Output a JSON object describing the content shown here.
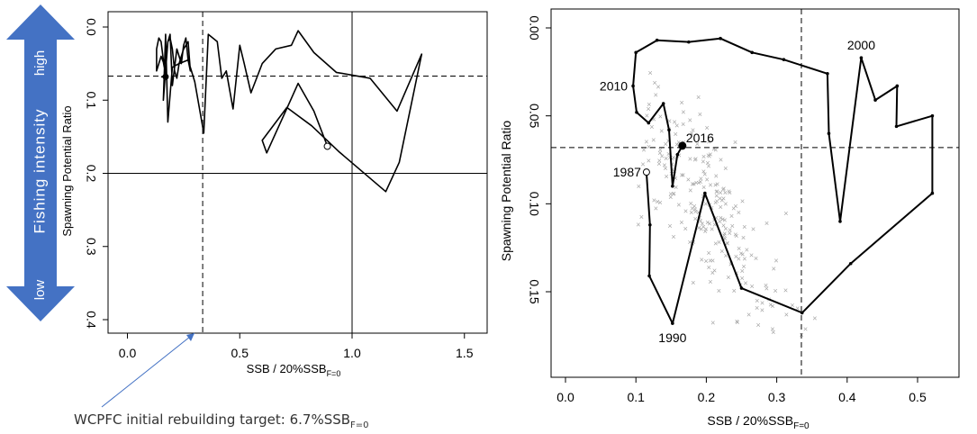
{
  "colors": {
    "arrow_fill": "#4472c4",
    "arrow_text": "#ffffff",
    "note_line": "#4472c4",
    "scatter": "#a6a6a6",
    "trajectory": "#000000"
  },
  "side_arrow": {
    "label": "Fishing intensity",
    "high": "high",
    "low": "low"
  },
  "annotation": {
    "text": "WCPFC initial rebuilding target: 6.7%SSB",
    "subscript": "F=0"
  },
  "chart_data": [
    {
      "type": "line",
      "xlabel": "SSB / 20%SSB",
      "xlabel_sub": "F=0",
      "ylabel": "Spawning Potential Ratio",
      "xlim": [
        -0.1,
        1.6
      ],
      "ylim": [
        0.0,
        0.4
      ],
      "y_reversed": true,
      "xticks": [
        "0.0",
        "0.5",
        "1.0",
        "1.5"
      ],
      "yticks": [
        "0.0",
        "0.1",
        "0.2",
        "0.3",
        "0.4"
      ],
      "reference_lines": [
        {
          "axis": "y",
          "value": 0.067,
          "style": "dashed"
        },
        {
          "axis": "x",
          "value": 0.335,
          "style": "dashed"
        },
        {
          "axis": "x",
          "value": 1.0,
          "style": "solid"
        },
        {
          "axis": "y",
          "value": 0.2,
          "style": "solid"
        }
      ],
      "series": [
        {
          "x": [
            0.89,
            0.83,
            0.76,
            0.7,
            0.62,
            0.6,
            0.71,
            0.82,
            0.94,
            1.15,
            1.21,
            1.31,
            1.2,
            1.08,
            0.93,
            0.83,
            0.76,
            0.73,
            0.66,
            0.6,
            0.55,
            0.52,
            0.5,
            0.47,
            0.44,
            0.42,
            0.4,
            0.36,
            0.34,
            0.3,
            0.27,
            0.23,
            0.2,
            0.18,
            0.17,
            0.16,
            0.18,
            0.19,
            0.2,
            0.22,
            0.24,
            0.25,
            0.26,
            0.27,
            0.28,
            0.27,
            0.25,
            0.23,
            0.22,
            0.21,
            0.2,
            0.19,
            0.18,
            0.17,
            0.16,
            0.15,
            0.14,
            0.13,
            0.13,
            0.14,
            0.15,
            0.16,
            0.17,
            0.16,
            0.15
          ],
          "y": [
            0.163,
            0.115,
            0.077,
            0.118,
            0.172,
            0.155,
            0.11,
            0.135,
            0.17,
            0.225,
            0.185,
            0.037,
            0.115,
            0.07,
            0.062,
            0.035,
            0.005,
            0.025,
            0.03,
            0.05,
            0.09,
            0.05,
            0.025,
            0.112,
            0.06,
            0.07,
            0.02,
            0.01,
            0.145,
            0.075,
            0.045,
            0.05,
            0.055,
            0.13,
            0.01,
            0.1,
            0.02,
            0.01,
            0.08,
            0.03,
            0.05,
            0.025,
            0.015,
            0.045,
            0.06,
            0.02,
            0.03,
            0.05,
            0.07,
            0.06,
            0.03,
            0.015,
            0.02,
            0.05,
            0.045,
            0.02,
            0.015,
            0.03,
            0.06,
            0.05,
            0.04,
            0.048,
            0.065,
            0.068,
            0.068
          ]
        }
      ],
      "start_point": {
        "x": 0.89,
        "y": 0.163
      },
      "end_point": {
        "x": 0.17,
        "y": 0.068
      }
    },
    {
      "type": "line",
      "xlabel": "SSB / 20%SSB",
      "xlabel_sub": "F=0",
      "ylabel": "Spawning Potential Ratio",
      "xlim": [
        -0.015,
        0.54
      ],
      "ylim": [
        0.0,
        0.18
      ],
      "y_reversed": true,
      "xticks": [
        "0.0",
        "0.1",
        "0.2",
        "0.3",
        "0.4",
        "0.5"
      ],
      "yticks": [
        "0.00",
        "0.05",
        "0.10",
        "0.15"
      ],
      "reference_lines": [
        {
          "axis": "y",
          "value": 0.068,
          "style": "dashed"
        },
        {
          "axis": "x",
          "value": 0.335,
          "style": "dashed"
        }
      ],
      "labels": [
        {
          "text": "1987",
          "x": 0.115,
          "y": 0.082,
          "side": "left"
        },
        {
          "text": "1990",
          "x": 0.152,
          "y": 0.168,
          "side": "below"
        },
        {
          "text": "2000",
          "x": 0.42,
          "y": 0.017,
          "side": "above"
        },
        {
          "text": "2010",
          "x": 0.096,
          "y": 0.033,
          "side": "left"
        },
        {
          "text": "2016",
          "x": 0.166,
          "y": 0.067,
          "side": "above-right"
        }
      ],
      "series": [
        {
          "x": [
            0.115,
            0.12,
            0.119,
            0.152,
            0.198,
            0.25,
            0.336,
            0.405,
            0.521,
            0.521,
            0.47,
            0.471,
            0.44,
            0.42,
            0.39,
            0.374,
            0.372,
            0.31,
            0.265,
            0.22,
            0.175,
            0.13,
            0.1,
            0.096,
            0.101,
            0.118,
            0.139,
            0.147,
            0.152,
            0.159,
            0.166
          ],
          "y": [
            0.082,
            0.112,
            0.141,
            0.168,
            0.094,
            0.148,
            0.162,
            0.134,
            0.094,
            0.05,
            0.056,
            0.033,
            0.041,
            0.017,
            0.11,
            0.06,
            0.026,
            0.018,
            0.014,
            0.006,
            0.008,
            0.007,
            0.014,
            0.033,
            0.048,
            0.054,
            0.043,
            0.058,
            0.09,
            0.072,
            0.067
          ]
        }
      ],
      "start_point": {
        "x": 0.115,
        "y": 0.082
      },
      "end_point": {
        "x": 0.166,
        "y": 0.067
      },
      "scatter_marker": "×"
    }
  ]
}
